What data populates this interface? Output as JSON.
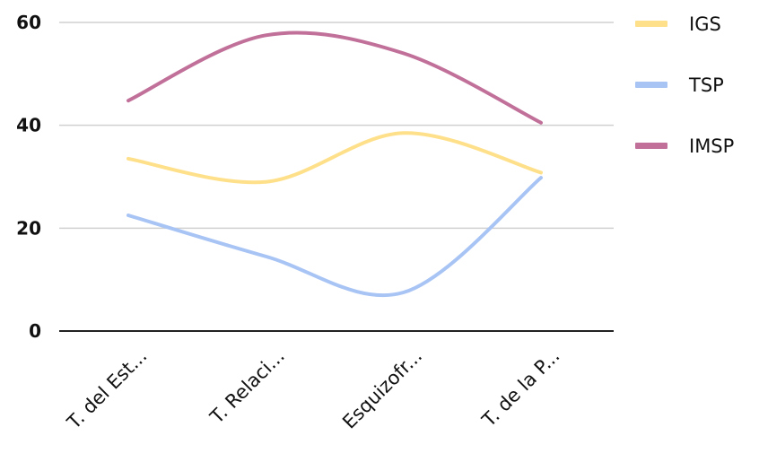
{
  "chart_data": {
    "type": "line",
    "categories": [
      "T. del Est...",
      "T. Relaci...",
      "Esquizofr...",
      "T. de la P..."
    ],
    "series": [
      {
        "name": "IGS",
        "color": "#FFE08A",
        "values": [
          33.5,
          29.0,
          38.5,
          30.8
        ]
      },
      {
        "name": "TSP",
        "color": "#A8C4F5",
        "values": [
          22.5,
          14.5,
          7.5,
          29.8
        ]
      },
      {
        "name": "IMSP",
        "color": "#C1709A",
        "values": [
          44.8,
          57.5,
          54.0,
          40.5
        ]
      }
    ],
    "yticks": [
      0,
      20,
      40,
      60
    ],
    "ylim": [
      0,
      60
    ],
    "grid": true,
    "legend_position": "right",
    "title": "",
    "xlabel": "",
    "ylabel": ""
  }
}
